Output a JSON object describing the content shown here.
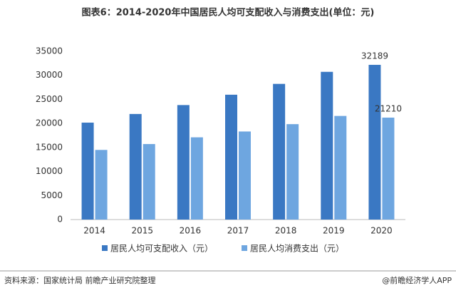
{
  "chart_data": {
    "type": "bar",
    "title": "图表6：2014-2020年中国居民人均可支配收入与消费支出(单位：元)",
    "categories": [
      "2014",
      "2015",
      "2016",
      "2017",
      "2018",
      "2019",
      "2020"
    ],
    "series": [
      {
        "name": "居民人均可支配收入（元）",
        "color": "#3a78c3",
        "values": [
          20167,
          21966,
          23821,
          25974,
          28228,
          30733,
          32189
        ],
        "value_labels": [
          null,
          null,
          null,
          null,
          null,
          null,
          "32189"
        ]
      },
      {
        "name": "居民人均消费支出（元）",
        "color": "#6ea6e0",
        "values": [
          14491,
          15712,
          17111,
          18322,
          19853,
          21559,
          21210
        ],
        "value_labels": [
          null,
          null,
          null,
          null,
          null,
          null,
          "21210"
        ]
      }
    ],
    "ylim": [
      0,
      35000
    ],
    "yticks": [
      0,
      5000,
      10000,
      15000,
      20000,
      25000,
      30000,
      35000
    ],
    "grid": false,
    "legend": "bottom",
    "source": "资料来源：国家统计局 前瞻产业研究院整理",
    "credit": "@前瞻经济学人APP"
  }
}
